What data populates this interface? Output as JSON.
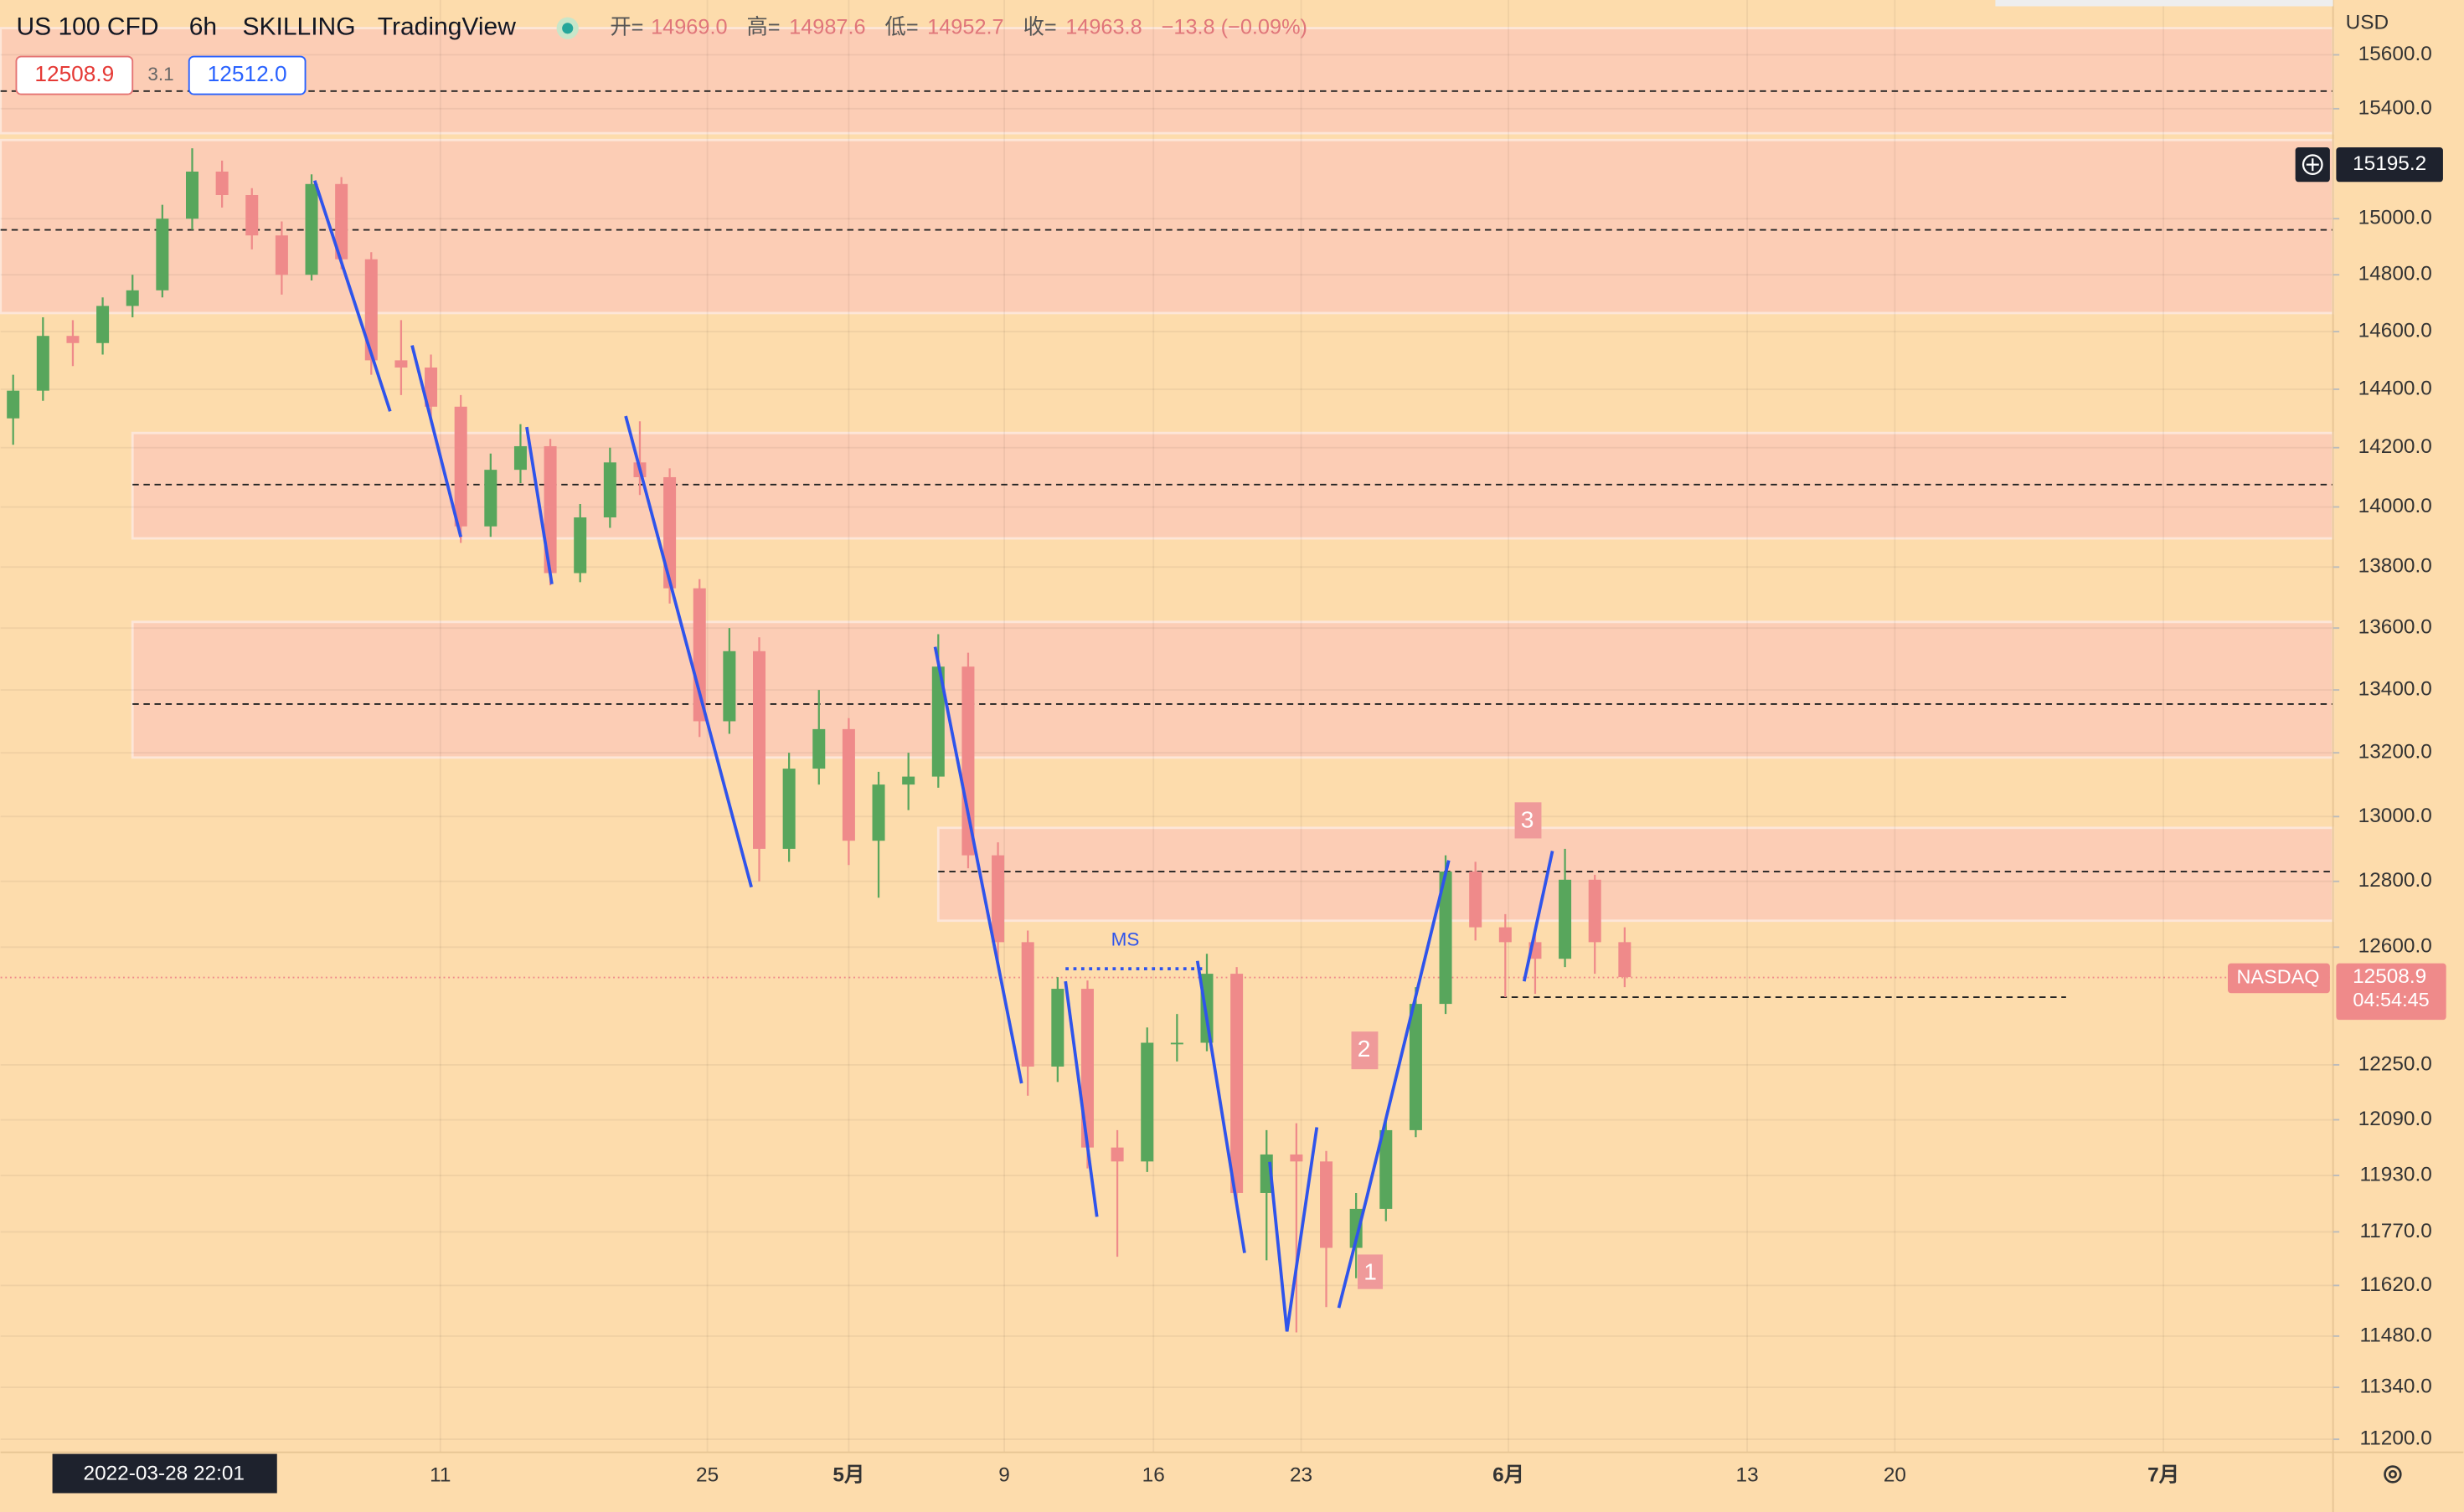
{
  "header": {
    "symbol": "US 100 CFD",
    "interval": "6h",
    "broker": "SKILLING",
    "platform": "TradingView",
    "open_label": "开=",
    "open": "14969.0",
    "high_label": "高=",
    "high": "14987.6",
    "low_label": "低=",
    "low": "14952.7",
    "close_label": "收=",
    "close": "14963.8",
    "change": "−13.8 (−0.09%)",
    "bid": "12508.9",
    "spread": "3.1",
    "ask": "12512.0"
  },
  "chart_data": {
    "type": "candlestick",
    "log_scale": true,
    "grid": true,
    "currency": "USD",
    "up_color": "#58a65c",
    "down_color": "#ef8a8a",
    "open": [
      14300,
      14395,
      14585,
      14560,
      14690,
      14745,
      15000,
      15170,
      15085,
      14940,
      14800,
      15125,
      14855,
      14500,
      14475,
      14340,
      13935,
      14125,
      14205,
      13780,
      13965,
      14150,
      14100,
      13730,
      13300,
      13525,
      12900,
      13150,
      13275,
      12925,
      13100,
      13125,
      13475,
      12880,
      12615,
      12245,
      12475,
      12010,
      11970,
      12315,
      12315,
      12520,
      11880,
      11990,
      11970,
      11725,
      11835,
      12060,
      12430,
      12830,
      12660,
      12615,
      12565,
      12805,
      12615
    ],
    "high": [
      14450,
      14650,
      14640,
      14720,
      14800,
      15050,
      15255,
      15210,
      15110,
      14990,
      15160,
      15150,
      14880,
      14640,
      14520,
      14380,
      14180,
      14280,
      14230,
      14010,
      14200,
      14290,
      14130,
      13760,
      13600,
      13570,
      13200,
      13400,
      13310,
      13140,
      13200,
      13580,
      13520,
      12920,
      12650,
      12510,
      12500,
      12060,
      12360,
      12400,
      12580,
      12540,
      12060,
      12080,
      12000,
      11880,
      12090,
      12480,
      12880,
      12860,
      12700,
      12650,
      12900,
      12820,
      12660
    ],
    "low": [
      14210,
      14360,
      14480,
      14520,
      14650,
      14720,
      14960,
      15040,
      14890,
      14730,
      14780,
      14820,
      14450,
      14380,
      14300,
      13880,
      13900,
      14080,
      13740,
      13750,
      13930,
      14040,
      13680,
      13250,
      13260,
      12800,
      12860,
      13100,
      12850,
      12750,
      13020,
      13090,
      12840,
      12560,
      12160,
      12200,
      11950,
      11700,
      11940,
      12260,
      12290,
      11840,
      11690,
      11490,
      11560,
      11640,
      11800,
      12040,
      12400,
      12620,
      12450,
      12460,
      12540,
      12520,
      12480
    ],
    "close": [
      14395,
      14585,
      14560,
      14690,
      14745,
      15000,
      15170,
      15085,
      14940,
      14800,
      15125,
      14855,
      14500,
      14475,
      14340,
      13935,
      14125,
      14205,
      13780,
      13965,
      14150,
      14100,
      13730,
      13300,
      13525,
      12900,
      13150,
      13275,
      12925,
      13100,
      13125,
      13475,
      12880,
      12615,
      12245,
      12475,
      12010,
      11970,
      12315,
      12315,
      12520,
      11880,
      11990,
      11970,
      11725,
      11835,
      12060,
      12430,
      12830,
      12660,
      12615,
      12565,
      12805,
      12615,
      12510
    ],
    "ylim": [
      11165,
      15806
    ],
    "yticks": [
      {
        "value": 15600,
        "label": "15600.0"
      },
      {
        "value": 15400,
        "label": "15400.0"
      },
      {
        "value": 15000,
        "label": "15000.0"
      },
      {
        "value": 14800,
        "label": "14800.0"
      },
      {
        "value": 14600,
        "label": "14600.0"
      },
      {
        "value": 14400,
        "label": "14400.0"
      },
      {
        "value": 14200,
        "label": "14200.0"
      },
      {
        "value": 14000,
        "label": "14000.0"
      },
      {
        "value": 13800,
        "label": "13800.0"
      },
      {
        "value": 13600,
        "label": "13600.0"
      },
      {
        "value": 13400,
        "label": "13400.0"
      },
      {
        "value": 13200,
        "label": "13200.0"
      },
      {
        "value": 13000,
        "label": "13000.0"
      },
      {
        "value": 12800,
        "label": "12800.0"
      },
      {
        "value": 12600,
        "label": "12600.0"
      },
      {
        "value": 12250,
        "label": "12250.0"
      },
      {
        "value": 12090,
        "label": "12090.0"
      },
      {
        "value": 11930,
        "label": "11930.0"
      },
      {
        "value": 11770,
        "label": "11770.0"
      },
      {
        "value": 11620,
        "label": "11620.0"
      },
      {
        "value": 11480,
        "label": "11480.0"
      },
      {
        "value": 11340,
        "label": "11340.0"
      },
      {
        "value": 11200,
        "label": "11200.0"
      }
    ],
    "xtick_labels": [
      "11",
      "25",
      "5月",
      "9",
      "16",
      "23",
      "6月",
      "13",
      "20",
      "7月"
    ],
    "crosshair_date": "2022-03-28  22:01",
    "crosshair_price": 15195.2,
    "zones": [
      {
        "top": 15700,
        "bottom": 15310,
        "mid": 15465,
        "from": 0
      },
      {
        "top": 15285,
        "bottom": 14665,
        "mid": 14960,
        "from": 0
      },
      {
        "top": 14250,
        "bottom": 13895,
        "mid": 14075,
        "from": 4
      },
      {
        "top": 13620,
        "bottom": 13185,
        "mid": 13355,
        "from": 4
      },
      {
        "top": 12965,
        "bottom": 12680,
        "mid": 12830,
        "from": 31
      }
    ],
    "support_level": 12450,
    "last_price": 12508.9,
    "last_price_name": "NASDAQ",
    "countdown": "04:54:45",
    "annotations": [
      "MS",
      "1",
      "2",
      "3"
    ]
  }
}
